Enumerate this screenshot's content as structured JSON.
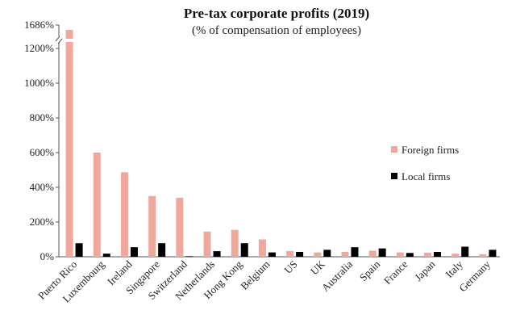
{
  "chart_data": {
    "type": "bar",
    "title": "Pre-tax corporate profits (2019)",
    "subtitle": "(% of compensation of employees)",
    "categories": [
      "Puerto Rico",
      "Luxembourg",
      "Ireland",
      "Singapore",
      "Switzerland",
      "Netherlands",
      "Hong Kong",
      "Belgium",
      "US",
      "UK",
      "Australia",
      "Spain",
      "France",
      "Japan",
      "Italy",
      "Germany"
    ],
    "series": [
      {
        "name": "Foreign firms",
        "values": [
          1686,
          600,
          487,
          350,
          340,
          145,
          155,
          100,
          33,
          25,
          28,
          35,
          25,
          23,
          18,
          15
        ],
        "color": "#f0a89d"
      },
      {
        "name": "Local firms",
        "values": [
          78,
          18,
          55,
          78,
          3,
          32,
          78,
          25,
          28,
          40,
          55,
          48,
          22,
          28,
          58,
          40
        ],
        "color": "#000000"
      }
    ],
    "y_ticks": [
      "0%",
      "200%",
      "400%",
      "600%",
      "800%",
      "1000%",
      "1200%"
    ],
    "y_tick_values": [
      0,
      200,
      400,
      600,
      800,
      1000,
      1200
    ],
    "y_break_label": "1686%",
    "ylim": [
      0,
      1300
    ],
    "y_break": true,
    "legend_position": "right",
    "grid": false
  }
}
